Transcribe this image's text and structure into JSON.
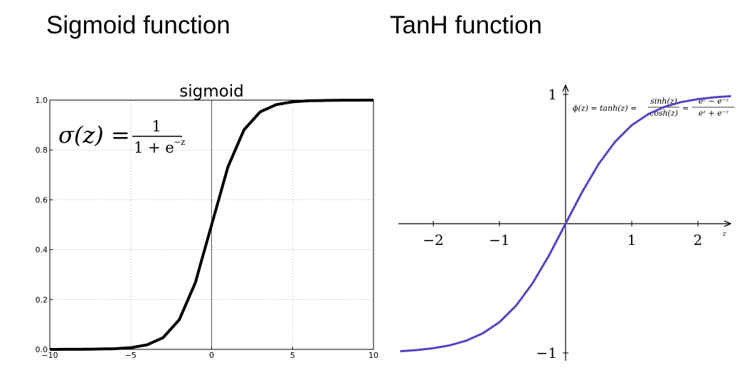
{
  "headings": {
    "left": "Sigmoid function",
    "right": "TanH function"
  },
  "chart_data": [
    {
      "type": "line",
      "title": "sigmoid",
      "formula": {
        "lhs": "σ(z) =",
        "num": "1",
        "den": "1 + e",
        "den_exp": "−z"
      },
      "xlim": [
        -10,
        10
      ],
      "ylim": [
        0,
        1
      ],
      "x_ticks": [
        -10,
        -5,
        0,
        5,
        10
      ],
      "x_tick_labels": [
        "−10",
        "−5",
        "0",
        "5",
        "10"
      ],
      "y_ticks": [
        0,
        0.2,
        0.4,
        0.6,
        0.8,
        1.0
      ],
      "y_tick_labels": [
        "0.0",
        "0.2",
        "0.4",
        "0.6",
        "0.8",
        "1.0"
      ],
      "grid": true,
      "color": "#000000",
      "series": [
        {
          "x": [
            -10,
            -8,
            -6,
            -5,
            -4,
            -3,
            -2,
            -1,
            0,
            1,
            2,
            3,
            4,
            5,
            6,
            8,
            10
          ],
          "y": [
            5e-05,
            0.0003,
            0.0025,
            0.0067,
            0.018,
            0.047,
            0.119,
            0.269,
            0.5,
            0.731,
            0.881,
            0.953,
            0.982,
            0.9933,
            0.9975,
            0.9997,
            0.99995
          ]
        }
      ]
    },
    {
      "type": "line",
      "formula": {
        "lhs": "ϕ(z) = tanh(z) =",
        "frac1_num": "sinh(z)",
        "frac1_den": "cosh(z)",
        "eq": "=",
        "frac2_num": "eᶻ − e⁻ᶻ",
        "frac2_den": "eᶻ + e⁻ᶻ"
      },
      "xlabel": "z",
      "xlim": [
        -2.5,
        2.5
      ],
      "ylim": [
        -1.4,
        1.4
      ],
      "x_ticks": [
        -2,
        -1,
        1,
        2
      ],
      "x_tick_labels": [
        "−2",
        "−1",
        "1",
        "2"
      ],
      "y_ticks": [
        1,
        -1
      ],
      "y_tick_labels": [
        "1",
        "−1"
      ],
      "color": "#5b3fc4",
      "series": [
        {
          "x": [
            -2.5,
            -2.25,
            -2,
            -1.75,
            -1.5,
            -1.25,
            -1,
            -0.75,
            -0.5,
            -0.25,
            0,
            0.25,
            0.5,
            0.75,
            1,
            1.25,
            1.5,
            1.75,
            2,
            2.25,
            2.5
          ],
          "y": [
            -0.987,
            -0.978,
            -0.964,
            -0.941,
            -0.905,
            -0.848,
            -0.762,
            -0.635,
            -0.462,
            -0.245,
            0,
            0.245,
            0.462,
            0.635,
            0.762,
            0.848,
            0.905,
            0.941,
            0.964,
            0.978,
            0.987
          ]
        }
      ]
    }
  ]
}
